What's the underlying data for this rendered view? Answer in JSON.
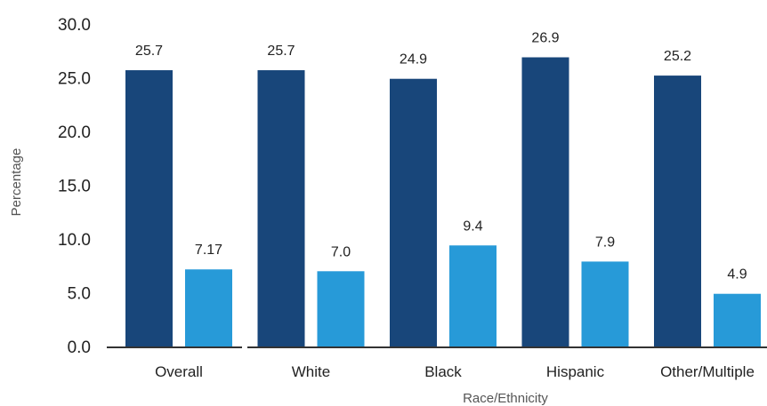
{
  "chart_data": {
    "type": "bar",
    "title": "",
    "xlabel": "Race/Ethnicity",
    "ylabel": "Percentage",
    "categories": [
      "Overall",
      "White",
      "Black",
      "Hispanic",
      "Other/Multiple"
    ],
    "series": [
      {
        "values": [
          25.7,
          25.7,
          24.9,
          26.9,
          25.2
        ],
        "labels": [
          "25.7",
          "25.7",
          "24.9",
          "26.9",
          "25.2"
        ],
        "color": "#18467a"
      },
      {
        "values": [
          7.17,
          7.0,
          9.4,
          7.9,
          4.9
        ],
        "labels": [
          "7.17",
          "7.0",
          "9.4",
          "7.9",
          "4.9"
        ],
        "color": "#279ad8"
      }
    ],
    "ylim": [
      0,
      30
    ],
    "yticks": [
      "0.0",
      "5.0",
      "10.0",
      "15.0",
      "20.0",
      "25.0",
      "30.0"
    ],
    "ytick_values": [
      0,
      5,
      10,
      15,
      20,
      25,
      30
    ],
    "grid": false,
    "legend": "none"
  }
}
